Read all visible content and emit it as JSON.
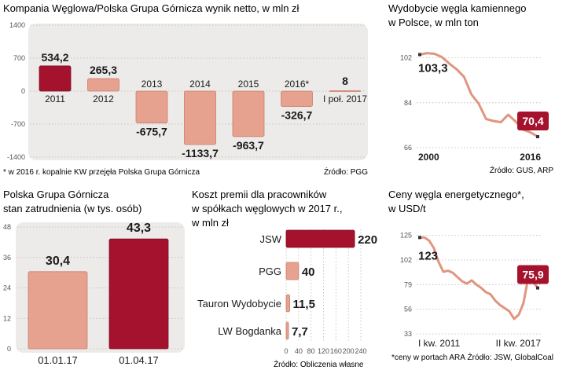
{
  "colors": {
    "panel_bg": "#ecebea",
    "accent": "#a5122d",
    "light": "#e6a28e",
    "light_border": "#c97f6c",
    "line": "#e0957f",
    "grid": "#b9b9b9",
    "text": "#1a1a1a",
    "muted": "#555555"
  },
  "chart_data": [
    {
      "type": "bar",
      "title": "Kompania Węglowa/Polska Grupa Górnicza wynik netto, w mln zł",
      "categories": [
        "2011",
        "2012",
        "2013",
        "2014",
        "2015",
        "2016*",
        "I poł. 2017"
      ],
      "values": [
        534.2,
        265.3,
        -675.7,
        -1133.7,
        -963.7,
        -326.7,
        8
      ],
      "value_labels": [
        "534,2",
        "265,3",
        "-675,7",
        "-1133,7",
        "-963,7",
        "-326,7",
        "8"
      ],
      "highlight": [
        true,
        false,
        false,
        false,
        false,
        false,
        false
      ],
      "yticks": [
        1400,
        700,
        0,
        -700,
        -1400
      ],
      "ytick_labels": [
        "1400",
        "700",
        "0",
        "-700",
        "-1400"
      ],
      "ylim": [
        -1400,
        1400
      ],
      "footnote": "* w 2016 r. kopalnie KW przejęła Polska Grupa Górnicza",
      "source": "Źródło: PGG"
    },
    {
      "type": "line",
      "title_lines": [
        "Wydobycie węgla kamiennego",
        "w Polsce, w mln ton"
      ],
      "x": [
        2000,
        2001,
        2002,
        2003,
        2004,
        2005,
        2006,
        2007,
        2008,
        2009,
        2010,
        2011,
        2012,
        2013,
        2014,
        2015,
        2016
      ],
      "values": [
        103.3,
        103.9,
        103.6,
        102.3,
        99.7,
        97.4,
        94.4,
        87.4,
        83.6,
        77.5,
        76.7,
        76.2,
        79.2,
        76.5,
        73.2,
        72.2,
        70.4
      ],
      "start_label": "103,3",
      "end_label": "70,4",
      "yticks": [
        66,
        84,
        102
      ],
      "ytick_labels": [
        "66",
        "84",
        "102"
      ],
      "ylim": [
        66,
        111
      ],
      "xtick_labels": [
        "2000",
        "2016"
      ],
      "source": "Źródło: GUS, ARP"
    },
    {
      "type": "bar",
      "title_lines": [
        "Polska Grupa Górnicza",
        "stan zatrudnienia (w tys. osób)"
      ],
      "categories": [
        "01.01.17",
        "01.04.17"
      ],
      "values": [
        30.4,
        43.3
      ],
      "value_labels": [
        "30,4",
        "43,3"
      ],
      "highlight": [
        false,
        true
      ],
      "yticks": [
        0,
        12,
        24,
        36,
        48
      ],
      "ytick_labels": [
        "0",
        "12",
        "24",
        "36",
        "48"
      ],
      "ylim": [
        0,
        48
      ]
    },
    {
      "type": "bar",
      "orientation": "horizontal",
      "title_lines": [
        "Koszt premii dla pracowników",
        "w spółkach węglowych w 2017 r.,",
        "w mln zł"
      ],
      "categories": [
        "JSW",
        "PGG",
        "Tauron Wydobycie",
        "LW Bogdanka"
      ],
      "values": [
        220,
        40,
        11.5,
        7.7
      ],
      "value_labels": [
        "220",
        "40",
        "11,5",
        "7,7"
      ],
      "highlight": [
        true,
        false,
        false,
        false
      ],
      "xticks": [
        0,
        40,
        80,
        120,
        160,
        200,
        240
      ],
      "xtick_labels": [
        "0",
        "40",
        "80",
        "120",
        "160",
        "200",
        "240"
      ],
      "xlim": [
        0,
        240
      ],
      "source": "Źródło: Obliczenia własne"
    },
    {
      "type": "line",
      "title_lines": [
        "Ceny węgla energetycznego*,",
        "w USD/t"
      ],
      "x": [
        "I kw. 2011",
        "II kw. 2011",
        "III kw. 2011",
        "IV kw. 2011",
        "I kw. 2012",
        "II kw. 2012",
        "III kw. 2012",
        "IV kw. 2012",
        "I kw. 2013",
        "II kw. 2013",
        "III kw. 2013",
        "IV kw. 2013",
        "I kw. 2014",
        "II kw. 2014",
        "III kw. 2014",
        "IV kw. 2014",
        "I kw. 2015",
        "II kw. 2015",
        "III kw. 2015",
        "IV kw. 2015",
        "I kw. 2016",
        "II kw. 2016",
        "III kw. 2016",
        "IV kw. 2016",
        "I kw. 2017",
        "II kw. 2017"
      ],
      "values": [
        123,
        123,
        120,
        113,
        100,
        91,
        92,
        90,
        86,
        82,
        80,
        83,
        79,
        76,
        72,
        70,
        64,
        60,
        57,
        54,
        47,
        51,
        62,
        86,
        82,
        75.9
      ],
      "start_label": "123",
      "end_label": "75,9",
      "yticks": [
        33,
        56,
        79,
        102,
        125
      ],
      "ytick_labels": [
        "33",
        "56",
        "79",
        "102",
        "125"
      ],
      "ylim": [
        33,
        135
      ],
      "xtick_labels": [
        "I kw. 2011",
        "II kw. 2017"
      ],
      "footnote": "*ceny w portach ARA",
      "source": "Źródło: JSW, GlobalCoal"
    }
  ]
}
